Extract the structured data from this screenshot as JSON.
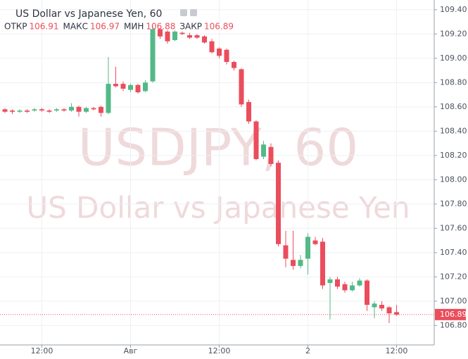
{
  "chart_data": {
    "type": "candlestick",
    "title": "US Dollar vs Japanese Yen, 60",
    "watermark": {
      "symbol": "USDJPY, 60",
      "name": "US Dollar vs Japanese Yen"
    },
    "header": [
      {
        "label": "ОТКР",
        "value": "106.91"
      },
      {
        "label": "МАКС",
        "value": "106.97"
      },
      {
        "label": "МИН",
        "value": "106.88"
      },
      {
        "label": "ЗАКР",
        "value": "106.89"
      }
    ],
    "categories": [
      null,
      null,
      null,
      null,
      null,
      "12:00",
      null,
      null,
      null,
      null,
      null,
      null,
      null,
      null,
      null,
      null,
      null,
      "Авг",
      null,
      null,
      null,
      null,
      null,
      null,
      null,
      null,
      null,
      null,
      null,
      "12:00",
      null,
      null,
      null,
      null,
      null,
      null,
      null,
      null,
      null,
      null,
      null,
      "2",
      null,
      null,
      null,
      null,
      null,
      null,
      null,
      null,
      null,
      null,
      null,
      "12:00"
    ],
    "series": {
      "up_color": "#53b987",
      "down_color": "#eb4d5c",
      "open": [
        108.58,
        108.57,
        108.56,
        108.57,
        108.57,
        108.58,
        108.57,
        108.57,
        108.58,
        108.57,
        108.6,
        108.56,
        108.59,
        108.6,
        108.55,
        108.79,
        108.79,
        108.74,
        108.78,
        108.73,
        108.81,
        109.24,
        109.22,
        109.15,
        109.21,
        109.19,
        109.19,
        109.18,
        109.14,
        109.08,
        109.07,
        108.97,
        108.91,
        108.64,
        108.48,
        108.19,
        108.27,
        108.14,
        107.46,
        107.34,
        107.29,
        107.35,
        107.5,
        107.49,
        107.15,
        107.18,
        107.14,
        107.09,
        107.13,
        107.17,
        106.95,
        106.97,
        106.95,
        106.91
      ],
      "high": [
        108.59,
        108.58,
        108.58,
        108.58,
        108.59,
        108.59,
        108.58,
        108.59,
        108.59,
        108.63,
        108.61,
        108.6,
        108.6,
        108.61,
        109.01,
        108.93,
        108.81,
        108.79,
        108.79,
        108.82,
        109.27,
        109.25,
        109.23,
        109.23,
        109.22,
        109.21,
        109.2,
        109.19,
        109.16,
        109.09,
        109.08,
        108.98,
        108.92,
        108.66,
        108.49,
        108.32,
        108.3,
        108.16,
        107.58,
        107.58,
        107.38,
        107.56,
        107.53,
        107.52,
        107.2,
        107.2,
        107.16,
        107.16,
        107.19,
        107.18,
        107.0,
        107.0,
        106.96,
        106.97
      ],
      "low": [
        108.55,
        108.54,
        108.55,
        108.55,
        108.56,
        108.56,
        108.55,
        108.56,
        108.56,
        108.56,
        108.52,
        108.55,
        108.57,
        108.52,
        108.54,
        108.76,
        108.73,
        108.72,
        108.71,
        108.72,
        108.8,
        109.16,
        109.12,
        109.14,
        109.19,
        109.16,
        109.16,
        109.12,
        109.04,
        109.0,
        108.95,
        108.9,
        108.6,
        108.46,
        108.16,
        108.17,
        108.11,
        107.45,
        107.28,
        107.26,
        107.27,
        107.22,
        107.46,
        107.1,
        106.85,
        107.1,
        107.07,
        107.08,
        107.12,
        106.92,
        106.86,
        106.92,
        106.82,
        106.88
      ],
      "close": [
        108.56,
        108.56,
        108.57,
        108.56,
        108.58,
        108.57,
        108.56,
        108.58,
        108.57,
        108.6,
        108.56,
        108.59,
        108.58,
        108.55,
        108.79,
        108.77,
        108.75,
        108.78,
        108.72,
        108.8,
        109.24,
        109.18,
        109.14,
        109.22,
        109.2,
        109.17,
        109.17,
        109.13,
        109.05,
        109.02,
        108.97,
        108.92,
        108.62,
        108.48,
        108.17,
        108.29,
        108.13,
        107.47,
        107.35,
        107.29,
        107.34,
        107.53,
        107.47,
        107.13,
        107.18,
        107.12,
        107.09,
        107.13,
        107.17,
        106.97,
        106.98,
        106.94,
        106.9,
        106.89
      ]
    },
    "last_price": {
      "value": 106.89,
      "label": "106.89"
    },
    "ylim": [
      106.64,
      109.48
    ],
    "yticks": [
      {
        "value": 109.4,
        "label": "109.40"
      },
      {
        "value": 109.2,
        "label": "109.20"
      },
      {
        "value": 109.0,
        "label": "109.00"
      },
      {
        "value": 108.8,
        "label": "108.80"
      },
      {
        "value": 108.6,
        "label": "108.60"
      },
      {
        "value": 108.4,
        "label": "108.40"
      },
      {
        "value": 108.2,
        "label": "108.20"
      },
      {
        "value": 108.0,
        "label": "108.00"
      },
      {
        "value": 107.8,
        "label": "107.80"
      },
      {
        "value": 107.6,
        "label": "107.60"
      },
      {
        "value": 107.4,
        "label": "107.40"
      },
      {
        "value": 107.2,
        "label": "107.20"
      },
      {
        "value": 107.0,
        "label": "107.00"
      },
      {
        "value": 106.8,
        "label": "106.80"
      }
    ],
    "grid": true
  }
}
